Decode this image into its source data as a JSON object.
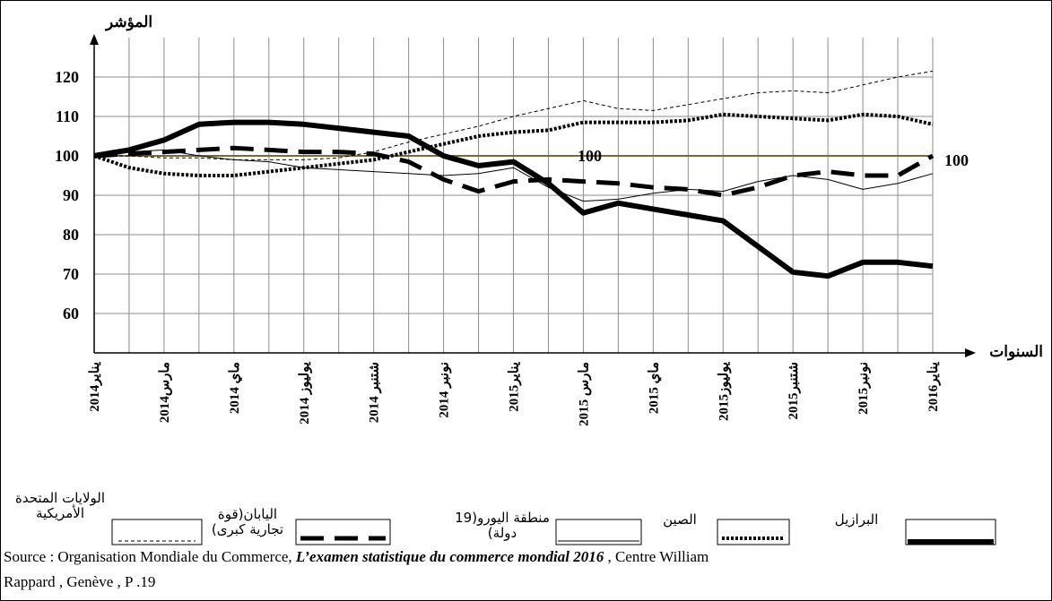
{
  "chart_data": {
    "type": "line",
    "y_label": "المؤشر",
    "x_label": "السنوات",
    "categories": [
      "يناير2014",
      null,
      "مارس2014",
      null,
      "ماي 2014",
      null,
      "يوليوز 2014",
      null,
      "شتنبر 2014",
      null,
      "نونبر 2014",
      null,
      "يناير2015",
      null,
      "مارس 2015",
      null,
      "ماي 2015",
      null,
      "يوليوز2015",
      null,
      "شتنبر2015",
      null,
      "نونبر2015",
      null,
      "يناير2016"
    ],
    "series": [
      {
        "name": "البرازيل",
        "color": "#000000",
        "style": "thick",
        "values": [
          100,
          101.5,
          104,
          108,
          108.5,
          108.5,
          108,
          107,
          106,
          105,
          100,
          97.5,
          98.5,
          93,
          85.5,
          88,
          86.5,
          85,
          83.5,
          77,
          70.5,
          69.5,
          73,
          73,
          72
        ]
      },
      {
        "name": "الصين",
        "color": "#000000",
        "style": "dotted",
        "values": [
          100,
          97,
          95.5,
          95,
          95,
          96,
          97,
          98,
          99,
          101,
          103,
          105,
          106,
          106.5,
          108.5,
          108.5,
          108.5,
          109,
          110.5,
          110,
          109.5,
          109,
          110.5,
          110,
          108
        ]
      },
      {
        "name": "منطقة اليورو(19 دولة)",
        "color": "#000000",
        "style": "thin",
        "values": [
          100,
          101,
          101.5,
          100,
          99,
          98.5,
          97,
          96.5,
          96,
          95.5,
          95,
          95.5,
          97,
          92,
          88.5,
          89,
          90.5,
          91.5,
          91,
          93.5,
          95,
          94,
          91.5,
          93,
          95.5
        ]
      },
      {
        "name": "اليابان(قوة تجارية كبرى)",
        "color": "#000000",
        "style": "long-dash",
        "values": [
          100,
          100.5,
          101,
          101.5,
          102,
          101.5,
          101,
          101,
          100.5,
          98.5,
          94,
          91,
          93.5,
          94,
          93.5,
          93,
          92,
          91.5,
          90,
          92,
          95,
          96,
          95,
          95,
          100
        ]
      },
      {
        "name": "الولايات المتحدة الأمريكية",
        "color": "#000000",
        "style": "dash",
        "values": [
          100,
          100,
          99.5,
          99.5,
          99,
          99,
          99,
          99.5,
          101,
          103.5,
          105.5,
          107.5,
          110,
          112,
          114,
          112,
          111.5,
          113,
          114.5,
          116,
          116.5,
          116,
          118,
          120,
          121.5
        ]
      }
    ],
    "reference_line": 100,
    "reference_color": "#7a6a3a",
    "ylim": [
      50,
      130
    ],
    "yticks": [
      60,
      70,
      80,
      90,
      100,
      110,
      120
    ],
    "grid": true
  },
  "source": {
    "prefix": "Source : Organisation Mondiale du Commerce, ",
    "title": "L’examen statistique du commerce mondial 2016",
    "suffix": " , Centre William",
    "line2": "Rappard , Genève , P .19"
  }
}
